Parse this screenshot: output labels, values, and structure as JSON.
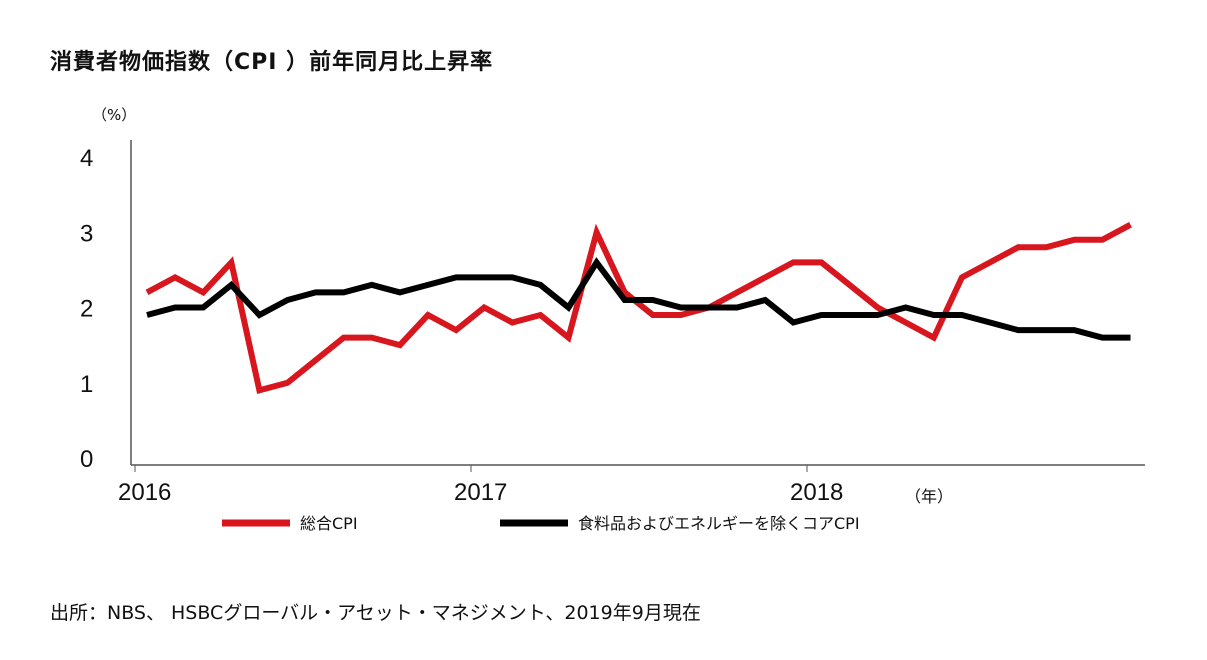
{
  "chart_data": {
    "type": "line",
    "title": "消費者物価指数（CPI ）前年同月比上昇率",
    "ylabel": "（%）",
    "xlabel": "（年）",
    "ylim": [
      0,
      4
    ],
    "yticks": [
      "0",
      "1",
      "2",
      "3",
      "4"
    ],
    "xticks": [
      "2016",
      "2017",
      "2018"
    ],
    "x_start": "2016-01",
    "x_frequency": "monthly",
    "grid": false,
    "legend": "bottom",
    "series": [
      {
        "name": "総合CPI",
        "color": "#d7161e",
        "values": [
          2.2,
          2.4,
          2.2,
          2.6,
          0.9,
          1.0,
          1.3,
          1.6,
          1.6,
          1.5,
          1.9,
          1.7,
          2.0,
          1.8,
          1.9,
          1.6,
          3.0,
          2.2,
          1.9,
          1.9,
          2.0,
          2.2,
          2.4,
          2.6,
          2.6,
          2.3,
          2.0,
          1.8,
          1.6,
          2.4,
          2.6,
          2.8,
          2.8,
          2.9,
          2.9,
          3.1
        ]
      },
      {
        "name": "食料品およびエネルギーを除くコアCPI",
        "color": "#000000",
        "values": [
          1.9,
          2.0,
          2.0,
          2.3,
          1.9,
          2.1,
          2.2,
          2.2,
          2.3,
          2.2,
          2.3,
          2.4,
          2.4,
          2.4,
          2.3,
          2.0,
          2.6,
          2.1,
          2.1,
          2.0,
          2.0,
          2.0,
          2.1,
          1.8,
          1.9,
          1.9,
          1.9,
          2.0,
          1.9,
          1.9,
          1.8,
          1.7,
          1.7,
          1.7,
          1.6,
          1.6
        ]
      }
    ]
  },
  "source": "出所：NBS、 HSBCグローバル・アセット・マネジメント、2019年9月現在"
}
